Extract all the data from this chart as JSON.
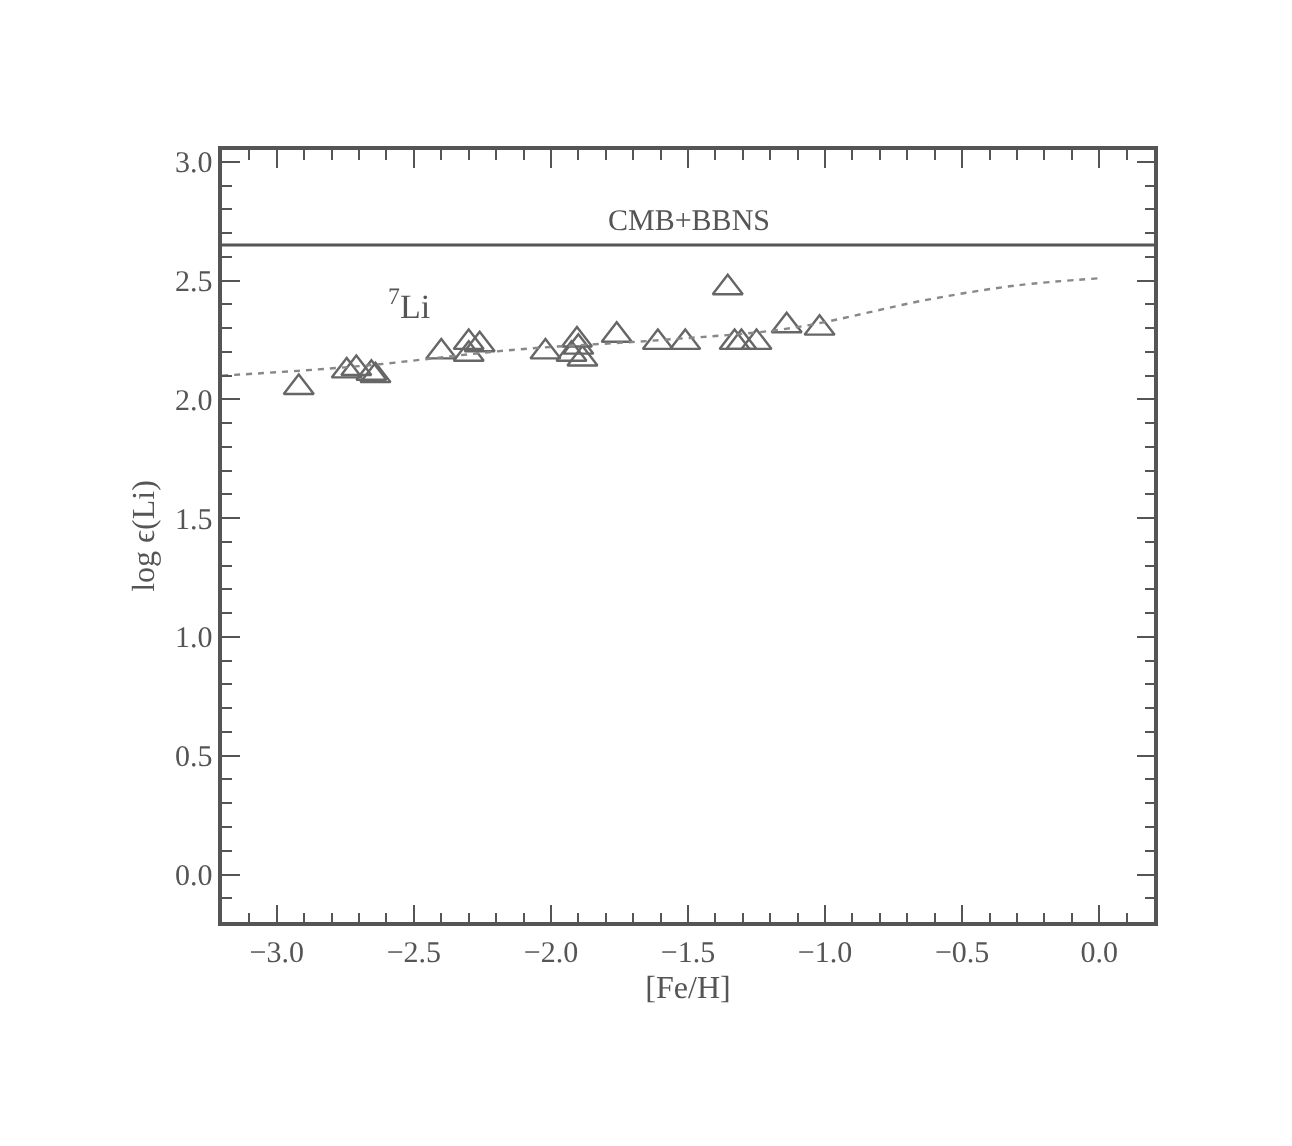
{
  "chart_data": {
    "type": "scatter",
    "xlabel": "[Fe/H]",
    "ylabel": "log ϵ(Li)",
    "xlim": [
      -3.2,
      0.2
    ],
    "ylim": [
      -0.2,
      3.05
    ],
    "xticks": [
      {
        "value": -3.0,
        "label": "−3.0"
      },
      {
        "value": -2.5,
        "label": "−2.5"
      },
      {
        "value": -2.0,
        "label": "−2.0"
      },
      {
        "value": -1.5,
        "label": "−1.5"
      },
      {
        "value": -1.0,
        "label": "−1.0"
      },
      {
        "value": -0.5,
        "label": "−0.5"
      },
      {
        "value": 0.0,
        "label": "0.0"
      },
      {
        "value": -3.1,
        "label": null
      },
      {
        "value": -2.9,
        "label": null
      },
      {
        "value": -2.8,
        "label": null
      },
      {
        "value": -2.7,
        "label": null
      },
      {
        "value": -2.6,
        "label": null
      },
      {
        "value": -2.4,
        "label": null
      },
      {
        "value": -2.3,
        "label": null
      },
      {
        "value": -2.2,
        "label": null
      },
      {
        "value": -2.1,
        "label": null
      },
      {
        "value": -1.9,
        "label": null
      },
      {
        "value": -1.8,
        "label": null
      },
      {
        "value": -1.7,
        "label": null
      },
      {
        "value": -1.6,
        "label": null
      },
      {
        "value": -1.4,
        "label": null
      },
      {
        "value": -1.3,
        "label": null
      },
      {
        "value": -1.2,
        "label": null
      },
      {
        "value": -1.1,
        "label": null
      },
      {
        "value": -0.9,
        "label": null
      },
      {
        "value": -0.8,
        "label": null
      },
      {
        "value": -0.7,
        "label": null
      },
      {
        "value": -0.6,
        "label": null
      },
      {
        "value": -0.4,
        "label": null
      },
      {
        "value": -0.3,
        "label": null
      },
      {
        "value": -0.2,
        "label": null
      },
      {
        "value": -0.1,
        "label": null
      },
      {
        "value": 0.1,
        "label": null
      }
    ],
    "yticks": [
      {
        "value": 0.0,
        "label": "0.0"
      },
      {
        "value": 0.5,
        "label": "0.5"
      },
      {
        "value": 1.0,
        "label": "1.0"
      },
      {
        "value": 1.5,
        "label": "1.5"
      },
      {
        "value": 2.0,
        "label": "2.0"
      },
      {
        "value": 2.5,
        "label": "2.5"
      },
      {
        "value": 3.0,
        "label": "3.0"
      },
      {
        "value": -0.1,
        "label": null
      },
      {
        "value": 0.1,
        "label": null
      },
      {
        "value": 0.2,
        "label": null
      },
      {
        "value": 0.3,
        "label": null
      },
      {
        "value": 0.4,
        "label": null
      },
      {
        "value": 0.6,
        "label": null
      },
      {
        "value": 0.7,
        "label": null
      },
      {
        "value": 0.8,
        "label": null
      },
      {
        "value": 0.9,
        "label": null
      },
      {
        "value": 1.1,
        "label": null
      },
      {
        "value": 1.2,
        "label": null
      },
      {
        "value": 1.3,
        "label": null
      },
      {
        "value": 1.4,
        "label": null
      },
      {
        "value": 1.6,
        "label": null
      },
      {
        "value": 1.7,
        "label": null
      },
      {
        "value": 1.8,
        "label": null
      },
      {
        "value": 1.9,
        "label": null
      },
      {
        "value": 2.1,
        "label": null
      },
      {
        "value": 2.2,
        "label": null
      },
      {
        "value": 2.3,
        "label": null
      },
      {
        "value": 2.4,
        "label": null
      },
      {
        "value": 2.6,
        "label": null
      },
      {
        "value": 2.7,
        "label": null
      },
      {
        "value": 2.8,
        "label": null
      },
      {
        "value": 2.9,
        "label": null
      }
    ],
    "series": [
      {
        "color": "#666666",
        "marker": "triangle",
        "x": [
          -2.92,
          -2.745,
          -2.71,
          -2.655,
          -2.64,
          -2.4,
          -2.3,
          -2.3,
          -2.26,
          -2.02,
          -1.925,
          -1.905,
          -1.9,
          -1.885,
          -1.76,
          -1.61,
          -1.51,
          -1.355,
          -1.33,
          -1.305,
          -1.25,
          -1.14,
          -1.02
        ],
        "values": [
          2.05,
          2.12,
          2.13,
          2.11,
          2.1,
          2.2,
          2.24,
          2.19,
          2.23,
          2.2,
          2.19,
          2.25,
          2.22,
          2.17,
          2.27,
          2.24,
          2.24,
          2.47,
          2.24,
          2.24,
          2.24,
          2.31,
          2.3
        ]
      },
      {
        "type": "line",
        "color": "#888888",
        "line_style": "dotted",
        "x": [
          -3.2,
          -2.7,
          -2.125,
          -1.6,
          -1.125,
          -0.625,
          -0.3,
          0.0
        ],
        "values": [
          2.1,
          2.14,
          2.21,
          2.25,
          2.3,
          2.42,
          2.48,
          2.51
        ]
      }
    ],
    "ref_lines": [
      {
        "axis": "y",
        "value": 2.65,
        "label": "CMB+BBNS",
        "color": "#555555",
        "line_style": "solid"
      }
    ],
    "annotations": [
      "$^{7}$Li"
    ]
  }
}
